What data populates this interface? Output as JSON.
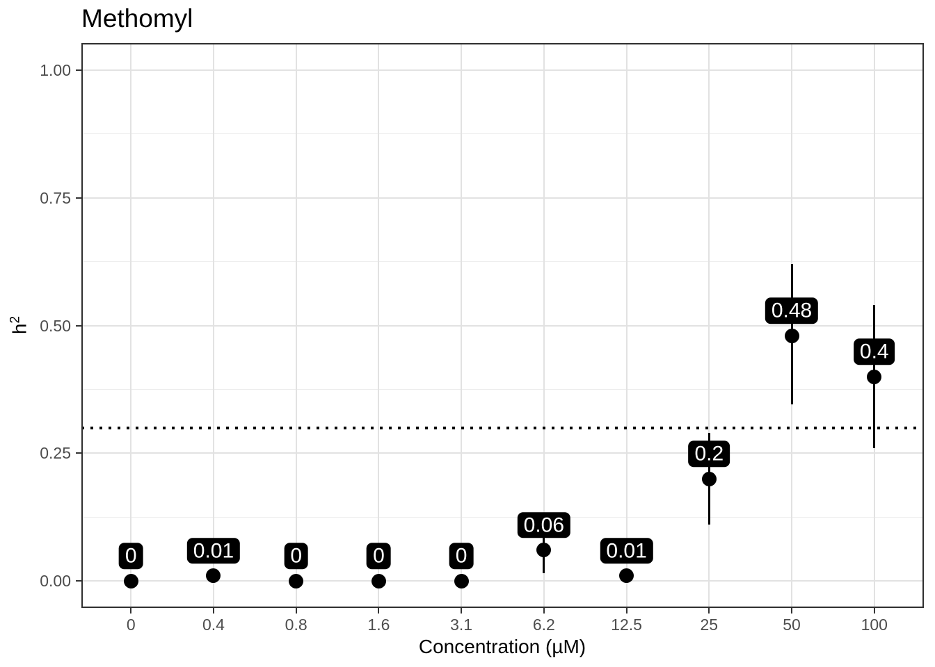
{
  "chart_data": {
    "type": "pointrange",
    "title": "Methomyl",
    "xlabel": "Concentration (µM)",
    "ylabel": "h²",
    "categories": [
      "0",
      "0.4",
      "0.8",
      "1.6",
      "3.1",
      "6.2",
      "12.5",
      "25",
      "50",
      "100"
    ],
    "values": [
      0,
      0.01,
      0,
      0,
      0,
      0.06,
      0.01,
      0.2,
      0.48,
      0.4
    ],
    "point_labels": [
      "0",
      "0.01",
      "0",
      "0",
      "0",
      "0.06",
      "0.01",
      "0.2",
      "0.48",
      "0.4"
    ],
    "lower": [
      null,
      null,
      null,
      null,
      null,
      0.015,
      null,
      0.11,
      0.345,
      0.26
    ],
    "upper": [
      null,
      null,
      null,
      null,
      null,
      0.105,
      null,
      0.29,
      0.62,
      0.54
    ],
    "reference_line_y": 0.3,
    "reference_line_style": "dotted",
    "y_tick_labels": [
      "0.00",
      "0.25",
      "0.50",
      "0.75",
      "1.00"
    ],
    "y_tick_values": [
      0,
      0.25,
      0.5,
      0.75,
      1.0
    ],
    "y_minor_tick_values": [
      0.125,
      0.375,
      0.625,
      0.875
    ],
    "ylim": [
      -0.053,
      1.053
    ],
    "grid": true,
    "legend": false,
    "colors": {
      "point": "#000000",
      "linerange": "#000000",
      "label_bg": "#000000",
      "label_text": "#ffffff",
      "grid_major": "#e2e2e2",
      "grid_minor": "#ededed",
      "panel_border": "#2f2f2f",
      "tick_label": "#4d4d4d",
      "title": "#000000",
      "reference_line": "#000000"
    }
  }
}
